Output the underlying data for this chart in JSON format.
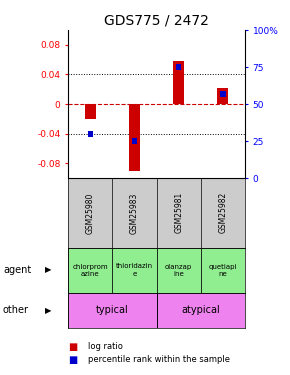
{
  "title": "GDS775 / 2472",
  "samples": [
    "GSM25980",
    "GSM25983",
    "GSM25981",
    "GSM25982"
  ],
  "log_ratios": [
    -0.02,
    -0.09,
    0.058,
    0.022
  ],
  "percentile_ranks": [
    30,
    25,
    75,
    57
  ],
  "agents": [
    "chlorprom\nazine",
    "thioridazin\ne",
    "olanzap\nine",
    "quetiapi\nne"
  ],
  "agent_colors": [
    "#90EE90",
    "#90EE90",
    "#90EE90",
    "#90EE90"
  ],
  "other_color": "#EE82EE",
  "ylim": [
    -0.1,
    0.1
  ],
  "yticks_left": [
    -0.08,
    -0.04,
    0.0,
    0.04,
    0.08
  ],
  "yticks_right": [
    0,
    25,
    50,
    75,
    100
  ],
  "bar_color": "#CC0000",
  "pct_color": "#0000CC",
  "zero_line_color": "#CC0000",
  "background_color": "#ffffff",
  "sample_box_color": "#cccccc",
  "title_fontsize": 10,
  "tick_fontsize": 6.5,
  "label_fontsize": 7
}
